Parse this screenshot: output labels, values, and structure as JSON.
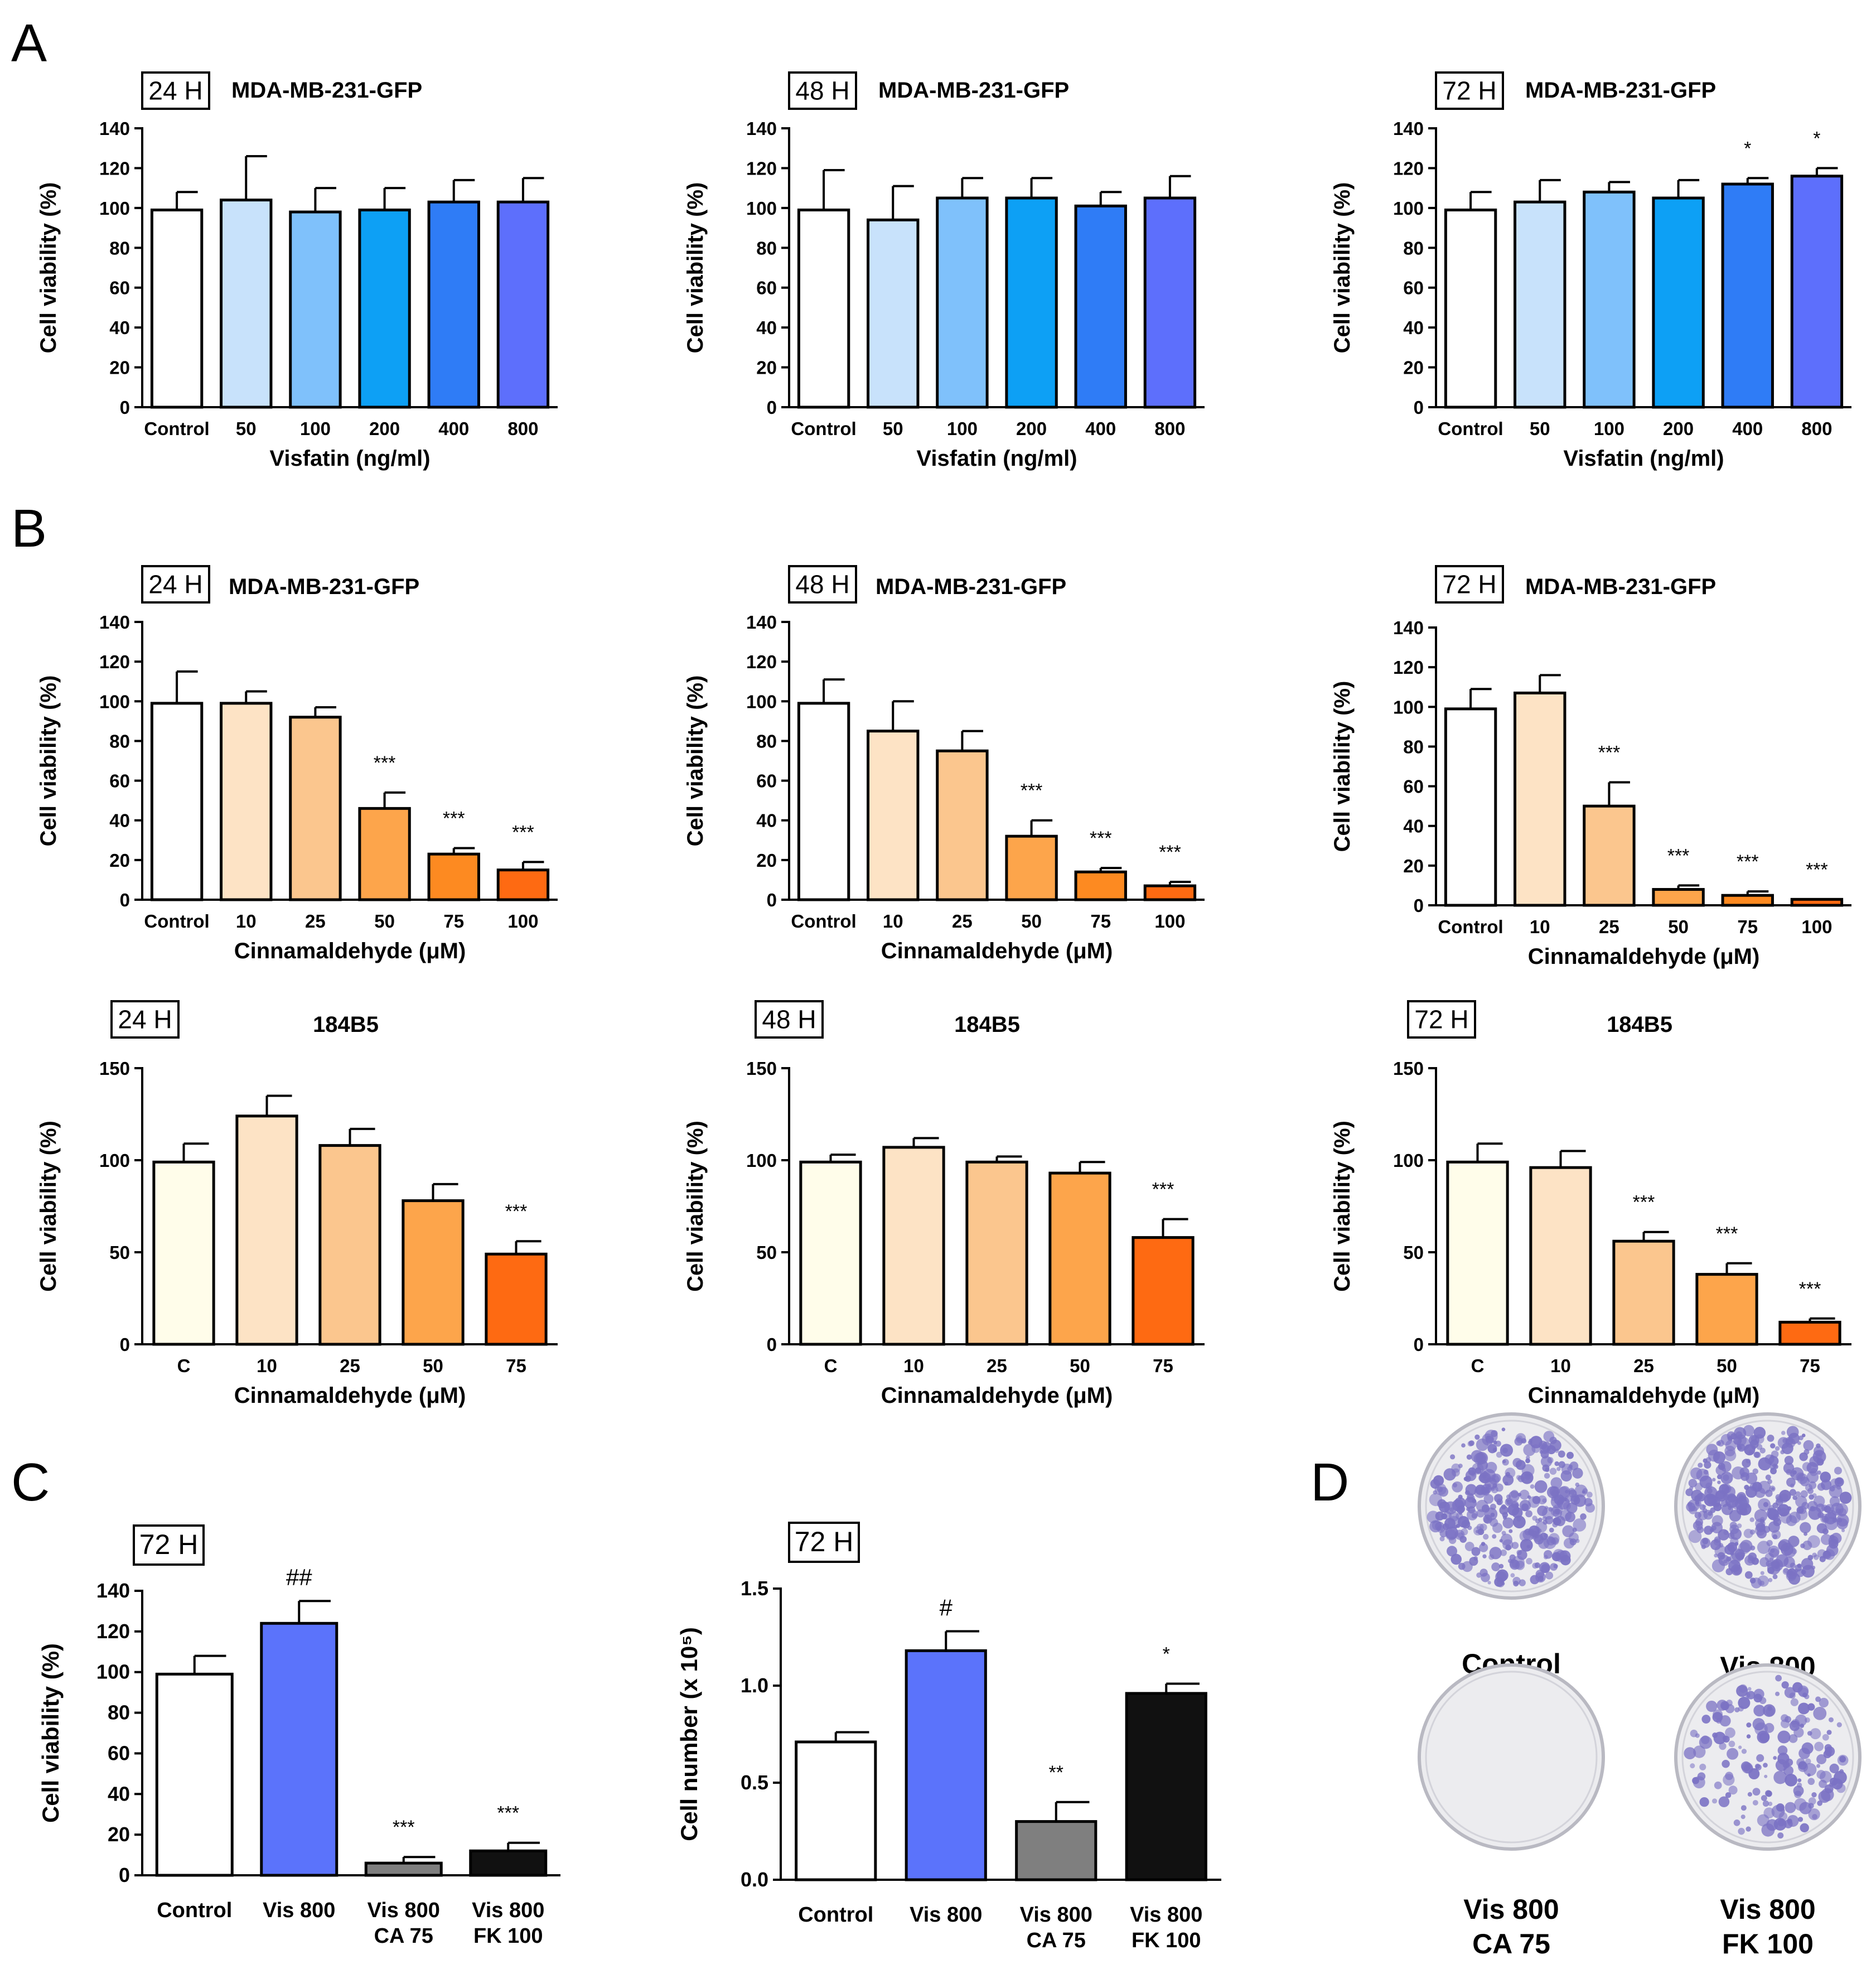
{
  "panel_letters": [
    "A",
    "B",
    "C",
    "D"
  ],
  "chart_data": [
    {
      "id": "A1",
      "type": "bar",
      "panel": "A",
      "time_badge": "24 H",
      "title": "MDA-MB-231-GFP",
      "ylabel": "Cell viability (%)",
      "xlabel": "Visfatin (ng/ml)",
      "ylim": [
        0,
        140
      ],
      "yticks": [
        0,
        20,
        40,
        60,
        80,
        100,
        120,
        140
      ],
      "categories": [
        "Control",
        "50",
        "100",
        "200",
        "400",
        "800"
      ],
      "values": [
        99,
        104,
        98,
        99,
        103,
        103
      ],
      "errors": [
        9,
        22,
        12,
        11,
        11,
        12
      ],
      "significance": [
        "",
        "",
        "",
        "",
        "",
        ""
      ],
      "colors": [
        "#ffffff",
        "#c8e2fb",
        "#7fc1fb",
        "#0da0f5",
        "#2f7cf6",
        "#5d6ffc"
      ]
    },
    {
      "id": "A2",
      "type": "bar",
      "panel": "A",
      "time_badge": "48 H",
      "title": "MDA-MB-231-GFP",
      "ylabel": "Cell viability (%)",
      "xlabel": "Visfatin (ng/ml)",
      "ylim": [
        0,
        140
      ],
      "yticks": [
        0,
        20,
        40,
        60,
        80,
        100,
        120,
        140
      ],
      "categories": [
        "Control",
        "50",
        "100",
        "200",
        "400",
        "800"
      ],
      "values": [
        99,
        94,
        105,
        105,
        101,
        105
      ],
      "errors": [
        20,
        17,
        10,
        10,
        7,
        11
      ],
      "significance": [
        "",
        "",
        "",
        "",
        "",
        ""
      ],
      "colors": [
        "#ffffff",
        "#c8e2fb",
        "#7fc1fb",
        "#0da0f5",
        "#2f7cf6",
        "#5d6ffc"
      ]
    },
    {
      "id": "A3",
      "type": "bar",
      "panel": "A",
      "time_badge": "72 H",
      "title": "MDA-MB-231-GFP",
      "ylabel": "Cell viability (%)",
      "xlabel": "Visfatin (ng/ml)",
      "ylim": [
        0,
        140
      ],
      "yticks": [
        0,
        20,
        40,
        60,
        80,
        100,
        120,
        140
      ],
      "categories": [
        "Control",
        "50",
        "100",
        "200",
        "400",
        "800"
      ],
      "values": [
        99,
        103,
        108,
        105,
        112,
        116
      ],
      "errors": [
        9,
        11,
        5,
        9,
        3,
        4
      ],
      "significance": [
        "",
        "",
        "",
        "",
        "*",
        "*"
      ],
      "colors": [
        "#ffffff",
        "#c8e2fb",
        "#7fc1fb",
        "#0da0f5",
        "#2f7cf6",
        "#5d6ffc"
      ]
    },
    {
      "id": "B1",
      "type": "bar",
      "panel": "B",
      "time_badge": "24 H",
      "title": "MDA-MB-231-GFP",
      "ylabel": "Cell viability (%)",
      "xlabel": "Cinnamaldehyde (μM)",
      "ylim": [
        0,
        140
      ],
      "yticks": [
        0,
        20,
        40,
        60,
        80,
        100,
        120,
        140
      ],
      "categories": [
        "Control",
        "10",
        "25",
        "50",
        "75",
        "100"
      ],
      "values": [
        99,
        99,
        92,
        46,
        23,
        15
      ],
      "errors": [
        16,
        6,
        5,
        8,
        3,
        4
      ],
      "significance": [
        "",
        "",
        "",
        "***",
        "***",
        "***"
      ],
      "colors": [
        "#ffffff",
        "#fde3c5",
        "#fbc68e",
        "#fda54b",
        "#fd8a21",
        "#fe6a12"
      ]
    },
    {
      "id": "B2",
      "type": "bar",
      "panel": "B",
      "time_badge": "48 H",
      "title": "MDA-MB-231-GFP",
      "ylabel": "Cell viability (%)",
      "xlabel": "Cinnamaldehyde (μM)",
      "ylim": [
        0,
        140
      ],
      "yticks": [
        0,
        20,
        40,
        60,
        80,
        100,
        120,
        140
      ],
      "categories": [
        "Control",
        "10",
        "25",
        "50",
        "75",
        "100"
      ],
      "values": [
        99,
        85,
        75,
        32,
        14,
        7
      ],
      "errors": [
        12,
        15,
        10,
        8,
        2,
        2
      ],
      "significance": [
        "",
        "",
        "",
        "***",
        "***",
        "***"
      ],
      "colors": [
        "#ffffff",
        "#fde3c5",
        "#fbc68e",
        "#fda54b",
        "#fd8a21",
        "#fe6a12"
      ]
    },
    {
      "id": "B3",
      "type": "bar",
      "panel": "B",
      "time_badge": "72 H",
      "title": "MDA-MB-231-GFP",
      "ylabel": "Cell viability (%)",
      "xlabel": "Cinnamaldehyde (μM)",
      "ylim": [
        0,
        140
      ],
      "yticks": [
        0,
        20,
        40,
        60,
        80,
        100,
        120,
        140
      ],
      "categories": [
        "Control",
        "10",
        "25",
        "50",
        "75",
        "100"
      ],
      "values": [
        99,
        107,
        50,
        8,
        5,
        3
      ],
      "errors": [
        10,
        9,
        12,
        2,
        2,
        0
      ],
      "significance": [
        "",
        "",
        "***",
        "***",
        "***",
        "***"
      ],
      "colors": [
        "#ffffff",
        "#fde3c5",
        "#fbc68e",
        "#fda54b",
        "#fd8a21",
        "#fe6a12"
      ]
    },
    {
      "id": "B4",
      "type": "bar",
      "panel": "B",
      "time_badge": "24 H",
      "title": "184B5",
      "ylabel": "Cell viability (%)",
      "xlabel": "Cinnamaldehyde (μM)",
      "ylim": [
        0,
        150
      ],
      "yticks": [
        0,
        50,
        100,
        150
      ],
      "categories": [
        "C",
        "10",
        "25",
        "50",
        "75"
      ],
      "values": [
        99,
        124,
        108,
        78,
        49
      ],
      "errors": [
        10,
        11,
        9,
        9,
        7
      ],
      "significance": [
        "",
        "",
        "",
        "",
        "***"
      ],
      "colors": [
        "#fffdea",
        "#fde3c5",
        "#fbc68e",
        "#fda54b",
        "#fe6a12"
      ]
    },
    {
      "id": "B5",
      "type": "bar",
      "panel": "B",
      "time_badge": "48 H",
      "title": "184B5",
      "ylabel": "Cell viability (%)",
      "xlabel": "Cinnamaldehyde (μM)",
      "ylim": [
        0,
        150
      ],
      "yticks": [
        0,
        50,
        100,
        150
      ],
      "categories": [
        "C",
        "10",
        "25",
        "50",
        "75"
      ],
      "values": [
        99,
        107,
        99,
        93,
        58
      ],
      "errors": [
        4,
        5,
        3,
        6,
        10
      ],
      "significance": [
        "",
        "",
        "",
        "",
        "***"
      ],
      "colors": [
        "#fffdea",
        "#fde3c5",
        "#fbc68e",
        "#fda54b",
        "#fe6a12"
      ]
    },
    {
      "id": "B6",
      "type": "bar",
      "panel": "B",
      "time_badge": "72 H",
      "title": "184B5",
      "ylabel": "Cell viability (%)",
      "xlabel": "Cinnamaldehyde (μM)",
      "ylim": [
        0,
        150
      ],
      "yticks": [
        0,
        50,
        100,
        150
      ],
      "categories": [
        "C",
        "10",
        "25",
        "50",
        "75"
      ],
      "values": [
        99,
        96,
        56,
        38,
        12
      ],
      "errors": [
        10,
        9,
        5,
        6,
        2
      ],
      "significance": [
        "",
        "",
        "***",
        "***",
        "***"
      ],
      "colors": [
        "#fffdea",
        "#fde3c5",
        "#fbc68e",
        "#fda54b",
        "#fe6a12"
      ]
    },
    {
      "id": "C1",
      "type": "bar",
      "panel": "C",
      "time_badge": "72 H",
      "title": "",
      "ylabel": "Cell viability (%)",
      "xlabel": "",
      "ylim": [
        0,
        140
      ],
      "yticks": [
        0,
        20,
        40,
        60,
        80,
        100,
        120,
        140
      ],
      "categories": [
        [
          "Control"
        ],
        [
          "Vis 800"
        ],
        [
          "Vis 800",
          "CA 75"
        ],
        [
          "Vis 800",
          "FK 100"
        ]
      ],
      "values": [
        99,
        124,
        6,
        12
      ],
      "errors": [
        9,
        11,
        3,
        4
      ],
      "significance": [
        "",
        "##",
        "***",
        "***"
      ],
      "colors": [
        "#ffffff",
        "#5b73fb",
        "#7f7f7f",
        "#111111"
      ]
    },
    {
      "id": "C2",
      "type": "bar",
      "panel": "C",
      "time_badge": "72 H",
      "title": "",
      "ylabel": "Cell number (x 10⁵)",
      "xlabel": "",
      "ylim": [
        0,
        1.5
      ],
      "yticks": [
        0.0,
        0.5,
        1.0,
        1.5
      ],
      "ytick_labels": [
        "0.0",
        "0.5",
        "1.0",
        "1.5"
      ],
      "categories": [
        [
          "Control"
        ],
        [
          "Vis 800"
        ],
        [
          "Vis 800",
          "CA 75"
        ],
        [
          "Vis 800",
          "FK 100"
        ]
      ],
      "values": [
        0.71,
        1.18,
        0.3,
        0.96
      ],
      "errors": [
        0.05,
        0.1,
        0.1,
        0.05
      ],
      "significance": [
        "",
        "#",
        "**",
        "*"
      ],
      "colors": [
        "#ffffff",
        "#5b73fb",
        "#7f7f7f",
        "#111111"
      ]
    }
  ],
  "panel_d": {
    "dishes": [
      {
        "label": [
          "Control"
        ],
        "colony_density": 0.85
      },
      {
        "label": [
          "Vis 800"
        ],
        "colony_density": 0.9
      },
      {
        "label": [
          "Vis 800",
          "CA 75"
        ],
        "colony_density": 0.0
      },
      {
        "label": [
          "Vis 800",
          "FK 100"
        ],
        "colony_density": 0.45
      }
    ],
    "stain_color": "#7b72c4"
  }
}
